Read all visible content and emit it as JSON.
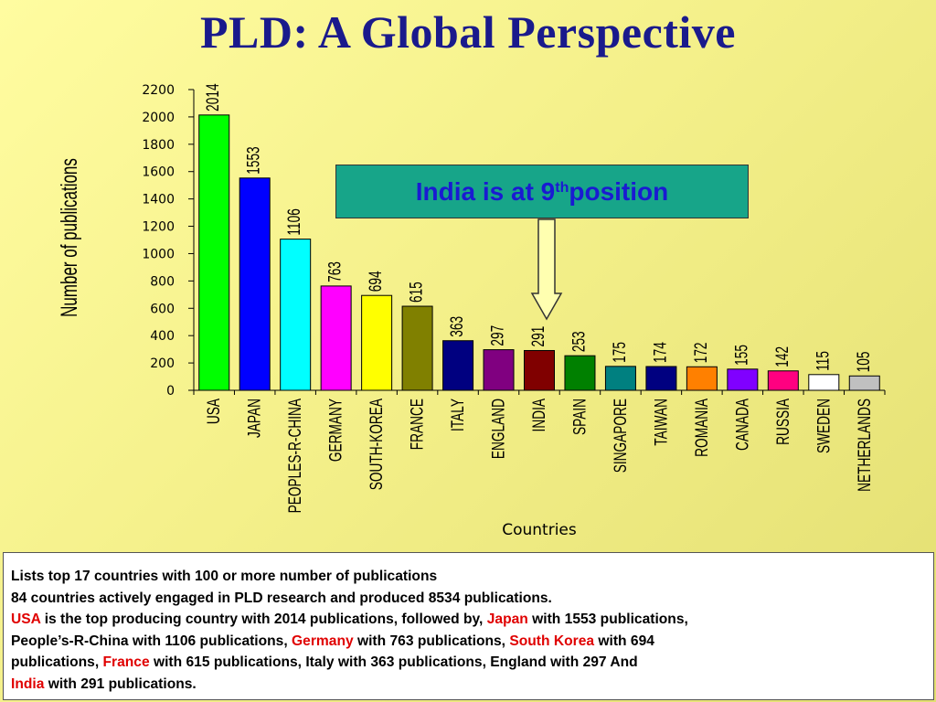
{
  "slide": {
    "title": "PLD: A Global Perspective",
    "callout": {
      "prefix": "India is at 9",
      "sup": "th",
      "suffix": " position"
    },
    "textbox": {
      "line1": "Lists top 17 countries with 100 or more number of publications",
      "line2": "84 countries  actively engaged in  PLD research and produced 8534 publications.",
      "usa": "USA",
      "t1": " is the top producing country with 2014 publications, followed by, ",
      "japan": "Japan",
      "t2": " with 1553 publications,",
      "t3": "People’s-R-China with 1106 publications, ",
      "germany": "Germany",
      "t4": " with 763 publications, ",
      "southkorea": "South Korea",
      "t5": " with 694",
      "t6": "publications, ",
      "france": "France",
      "t7": " with 615 publications, Italy with 363 publications, England with 297 And",
      "india": "India",
      "t8": " with 291 publications."
    }
  },
  "chart_data": {
    "type": "bar",
    "title": "",
    "xlabel": "Countries",
    "ylabel": "Number of publications",
    "ylim": [
      0,
      2200
    ],
    "yticks": [
      0,
      200,
      400,
      600,
      800,
      1000,
      1200,
      1400,
      1600,
      1800,
      2000,
      2200
    ],
    "grid": false,
    "categories": [
      "USA",
      "JAPAN",
      "PEOPLES-R-CHINA",
      "GERMANY",
      "SOUTH-KOREA",
      "FRANCE",
      "ITALY",
      "ENGLAND",
      "INDIA",
      "SPAIN",
      "SINGAPORE",
      "TAIWAN",
      "ROMANIA",
      "CANADA",
      "RUSSIA",
      "SWEDEN",
      "NETHERLANDS"
    ],
    "values": [
      2014,
      1553,
      1106,
      763,
      694,
      615,
      363,
      297,
      291,
      253,
      175,
      174,
      172,
      155,
      142,
      115,
      105
    ],
    "colors": [
      "#00ff00",
      "#0000ff",
      "#00ffff",
      "#ff00ff",
      "#ffff00",
      "#808000",
      "#000080",
      "#800080",
      "#800000",
      "#008000",
      "#008080",
      "#000080",
      "#ff8000",
      "#8000ff",
      "#ff0080",
      "#ffffff",
      "#c0c0c0"
    ]
  }
}
